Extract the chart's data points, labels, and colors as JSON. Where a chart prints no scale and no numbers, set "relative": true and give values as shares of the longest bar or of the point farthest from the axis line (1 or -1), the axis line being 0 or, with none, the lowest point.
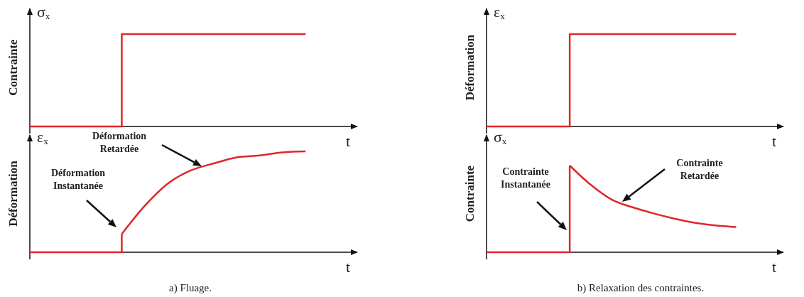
{
  "chart_data": [
    {
      "type": "step",
      "relative": true,
      "categories": [
        null,
        null,
        null,
        null,
        null,
        null,
        null,
        null,
        null,
        null,
        null,
        null,
        null,
        null,
        null
      ],
      "xlabel": "t",
      "ylabel": "Contrainte",
      "annotations": [
        "σ$_{x}$"
      ],
      "series": [
        {
          "color": "#e0262b",
          "values": [
            0,
            0,
            0,
            0,
            1,
            1,
            1,
            1,
            1,
            1,
            1,
            1,
            1,
            null,
            null
          ]
        }
      ]
    },
    {
      "type": "step",
      "relative": true,
      "categories": [
        null,
        null,
        null,
        null,
        null,
        null,
        null,
        null,
        null,
        null,
        null,
        null,
        null,
        null,
        null
      ],
      "xlabel": "t",
      "ylabel": "Déformation",
      "annotations": [
        "ε$_{x}$"
      ],
      "series": [
        {
          "color": "#e0262b",
          "values": [
            0,
            0,
            0,
            0,
            1,
            1,
            1,
            1,
            1,
            1,
            1,
            1,
            1,
            null,
            null
          ]
        }
      ]
    },
    {
      "type": "line",
      "relative": true,
      "categories": [
        null,
        null,
        null,
        null,
        null,
        null,
        null,
        null,
        null,
        null,
        null,
        null,
        null,
        null,
        null
      ],
      "xlabel": "t",
      "ylabel": "Déformation",
      "annotations": [
        "ε$_{x}$",
        "Déformation Retardée",
        "Déformation Instantanée",
        "a) Fluage."
      ],
      "series": [
        {
          "type": "step",
          "color": "#e0262b",
          "values": [
            0,
            0,
            0,
            0,
            0.18,
            null,
            null,
            null,
            null,
            null,
            null,
            null,
            null,
            null,
            null
          ]
        },
        {
          "color": "#e0262b",
          "values": [
            null,
            null,
            null,
            null,
            0.18,
            0.46,
            0.68,
            0.81,
            0.88,
            0.94,
            0.96,
            0.99,
            1,
            null,
            null
          ]
        }
      ]
    },
    {
      "type": "line",
      "relative": true,
      "categories": [
        null,
        null,
        null,
        null,
        null,
        null,
        null,
        null,
        null,
        null,
        null,
        null,
        null,
        null,
        null
      ],
      "xlabel": "t",
      "ylabel": "Contrainte",
      "annotations": [
        "σ$_{x}$",
        "Contrainte Retardée",
        "Contrainte Instantanée",
        "b) Relaxation des contraintes."
      ],
      "series": [
        {
          "type": "step",
          "color": "#e0262b",
          "values": [
            0,
            0,
            0,
            0,
            1,
            null,
            null,
            null,
            null,
            null,
            null,
            null,
            null,
            null,
            null
          ]
        },
        {
          "color": "#e0262b",
          "values": [
            null,
            null,
            null,
            null,
            1,
            0.78,
            0.61,
            0.52,
            0.45,
            0.39,
            0.34,
            0.31,
            0.29,
            null,
            null
          ]
        }
      ]
    }
  ]
}
